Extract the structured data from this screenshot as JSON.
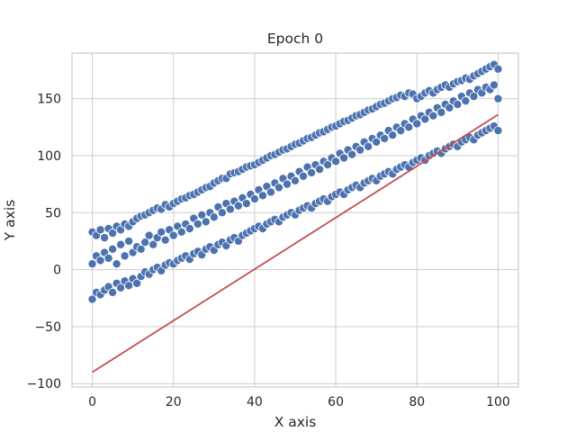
{
  "chart_data": {
    "type": "scatter",
    "title": "Epoch 0",
    "xlabel": "X axis",
    "ylabel": "Y axis",
    "xlim": [
      -5,
      105
    ],
    "ylim": [
      -103,
      190
    ],
    "xticks": [
      0,
      20,
      40,
      60,
      80,
      100
    ],
    "xtick_labels": [
      "0",
      "20",
      "40",
      "60",
      "80",
      "100"
    ],
    "yticks": [
      -100,
      -50,
      0,
      50,
      100,
      150
    ],
    "ytick_labels": [
      "−100",
      "−50",
      "0",
      "50",
      "100",
      "150"
    ],
    "grid": true,
    "legend": "none",
    "series": [
      {
        "kind": "scatter",
        "color": "#4c72b0",
        "edge_color": "#ffffff",
        "points": [
          [
            0,
            -26
          ],
          [
            0,
            5
          ],
          [
            0,
            33
          ],
          [
            1,
            -20
          ],
          [
            1,
            12
          ],
          [
            1,
            30
          ],
          [
            2,
            -22
          ],
          [
            2,
            8
          ],
          [
            2,
            35
          ],
          [
            3,
            -18
          ],
          [
            3,
            15
          ],
          [
            3,
            28
          ],
          [
            4,
            -15
          ],
          [
            4,
            10
          ],
          [
            4,
            36
          ],
          [
            5,
            -20
          ],
          [
            5,
            18
          ],
          [
            5,
            32
          ],
          [
            6,
            -12
          ],
          [
            6,
            5
          ],
          [
            6,
            38
          ],
          [
            7,
            -16
          ],
          [
            7,
            22
          ],
          [
            7,
            35
          ],
          [
            8,
            -10
          ],
          [
            8,
            12
          ],
          [
            8,
            40
          ],
          [
            9,
            -14
          ],
          [
            9,
            25
          ],
          [
            9,
            38
          ],
          [
            10,
            -8
          ],
          [
            10,
            15
          ],
          [
            10,
            42
          ],
          [
            11,
            -12
          ],
          [
            11,
            20
          ],
          [
            11,
            45
          ],
          [
            12,
            -6
          ],
          [
            12,
            18
          ],
          [
            12,
            47
          ],
          [
            13,
            -2
          ],
          [
            13,
            24
          ],
          [
            13,
            48
          ],
          [
            14,
            -4
          ],
          [
            14,
            30
          ],
          [
            14,
            50
          ],
          [
            15,
            0
          ],
          [
            15,
            22
          ],
          [
            15,
            52
          ],
          [
            16,
            2
          ],
          [
            16,
            28
          ],
          [
            16,
            54
          ],
          [
            17,
            -1
          ],
          [
            17,
            33
          ],
          [
            17,
            53
          ],
          [
            18,
            4
          ],
          [
            18,
            26
          ],
          [
            18,
            57
          ],
          [
            19,
            6
          ],
          [
            19,
            35
          ],
          [
            19,
            55
          ],
          [
            20,
            5
          ],
          [
            20,
            30
          ],
          [
            20,
            58
          ],
          [
            21,
            8
          ],
          [
            21,
            38
          ],
          [
            21,
            60
          ],
          [
            22,
            10
          ],
          [
            22,
            33
          ],
          [
            22,
            62
          ],
          [
            23,
            12
          ],
          [
            23,
            40
          ],
          [
            23,
            63
          ],
          [
            24,
            9
          ],
          [
            24,
            36
          ],
          [
            24,
            65
          ],
          [
            25,
            14
          ],
          [
            25,
            45
          ],
          [
            25,
            66
          ],
          [
            26,
            16
          ],
          [
            26,
            40
          ],
          [
            26,
            68
          ],
          [
            27,
            13
          ],
          [
            27,
            48
          ],
          [
            27,
            70
          ],
          [
            28,
            18
          ],
          [
            28,
            42
          ],
          [
            28,
            72
          ],
          [
            29,
            20
          ],
          [
            29,
            50
          ],
          [
            29,
            73
          ],
          [
            30,
            17
          ],
          [
            30,
            46
          ],
          [
            30,
            76
          ],
          [
            31,
            22
          ],
          [
            31,
            55
          ],
          [
            31,
            78
          ],
          [
            32,
            24
          ],
          [
            32,
            50
          ],
          [
            32,
            80
          ],
          [
            33,
            21
          ],
          [
            33,
            58
          ],
          [
            33,
            80
          ],
          [
            34,
            26
          ],
          [
            34,
            53
          ],
          [
            34,
            84
          ],
          [
            35,
            28
          ],
          [
            35,
            60
          ],
          [
            35,
            85
          ],
          [
            36,
            25
          ],
          [
            36,
            56
          ],
          [
            36,
            86
          ],
          [
            37,
            30
          ],
          [
            37,
            63
          ],
          [
            37,
            88
          ],
          [
            38,
            32
          ],
          [
            38,
            58
          ],
          [
            38,
            90
          ],
          [
            39,
            34
          ],
          [
            39,
            66
          ],
          [
            39,
            91
          ],
          [
            40,
            36
          ],
          [
            40,
            62
          ],
          [
            40,
            92
          ],
          [
            41,
            38
          ],
          [
            41,
            70
          ],
          [
            41,
            94
          ],
          [
            42,
            36
          ],
          [
            42,
            65
          ],
          [
            42,
            96
          ],
          [
            43,
            40
          ],
          [
            43,
            73
          ],
          [
            43,
            98
          ],
          [
            44,
            42
          ],
          [
            44,
            68
          ],
          [
            44,
            100
          ],
          [
            45,
            44
          ],
          [
            45,
            76
          ],
          [
            45,
            101
          ],
          [
            46,
            42
          ],
          [
            46,
            72
          ],
          [
            46,
            103
          ],
          [
            47,
            46
          ],
          [
            47,
            80
          ],
          [
            47,
            105
          ],
          [
            48,
            48
          ],
          [
            48,
            75
          ],
          [
            48,
            106
          ],
          [
            49,
            50
          ],
          [
            49,
            82
          ],
          [
            49,
            108
          ],
          [
            50,
            48
          ],
          [
            50,
            78
          ],
          [
            50,
            110
          ],
          [
            51,
            52
          ],
          [
            51,
            86
          ],
          [
            51,
            111
          ],
          [
            52,
            54
          ],
          [
            52,
            82
          ],
          [
            52,
            113
          ],
          [
            53,
            56
          ],
          [
            53,
            90
          ],
          [
            53,
            115
          ],
          [
            54,
            54
          ],
          [
            54,
            85
          ],
          [
            54,
            116
          ],
          [
            55,
            58
          ],
          [
            55,
            92
          ],
          [
            55,
            118
          ],
          [
            56,
            60
          ],
          [
            56,
            88
          ],
          [
            56,
            120
          ],
          [
            57,
            62
          ],
          [
            57,
            95
          ],
          [
            57,
            121
          ],
          [
            58,
            60
          ],
          [
            58,
            92
          ],
          [
            58,
            123
          ],
          [
            59,
            64
          ],
          [
            59,
            98
          ],
          [
            59,
            125
          ],
          [
            60,
            66
          ],
          [
            60,
            95
          ],
          [
            60,
            126
          ],
          [
            61,
            68
          ],
          [
            61,
            102
          ],
          [
            61,
            128
          ],
          [
            62,
            66
          ],
          [
            62,
            98
          ],
          [
            62,
            130
          ],
          [
            63,
            70
          ],
          [
            63,
            105
          ],
          [
            63,
            131
          ],
          [
            64,
            72
          ],
          [
            64,
            101
          ],
          [
            64,
            133
          ],
          [
            65,
            74
          ],
          [
            65,
            108
          ],
          [
            65,
            135
          ],
          [
            66,
            72
          ],
          [
            66,
            105
          ],
          [
            66,
            136
          ],
          [
            67,
            76
          ],
          [
            67,
            112
          ],
          [
            67,
            138
          ],
          [
            68,
            78
          ],
          [
            68,
            108
          ],
          [
            68,
            140
          ],
          [
            69,
            80
          ],
          [
            69,
            115
          ],
          [
            69,
            141
          ],
          [
            70,
            78
          ],
          [
            70,
            112
          ],
          [
            70,
            143
          ],
          [
            71,
            82
          ],
          [
            71,
            118
          ],
          [
            71,
            145
          ],
          [
            72,
            84
          ],
          [
            72,
            115
          ],
          [
            72,
            146
          ],
          [
            73,
            86
          ],
          [
            73,
            122
          ],
          [
            73,
            148
          ],
          [
            74,
            84
          ],
          [
            74,
            118
          ],
          [
            74,
            150
          ],
          [
            75,
            88
          ],
          [
            75,
            125
          ],
          [
            75,
            151
          ],
          [
            76,
            90
          ],
          [
            76,
            122
          ],
          [
            76,
            153
          ],
          [
            77,
            92
          ],
          [
            77,
            128
          ],
          [
            77,
            152
          ],
          [
            78,
            90
          ],
          [
            78,
            125
          ],
          [
            78,
            155
          ],
          [
            79,
            94
          ],
          [
            79,
            132
          ],
          [
            79,
            154
          ],
          [
            80,
            96
          ],
          [
            80,
            128
          ],
          [
            80,
            150
          ],
          [
            81,
            98
          ],
          [
            81,
            135
          ],
          [
            81,
            152
          ],
          [
            82,
            96
          ],
          [
            82,
            132
          ],
          [
            82,
            155
          ],
          [
            83,
            100
          ],
          [
            83,
            138
          ],
          [
            83,
            157
          ],
          [
            84,
            102
          ],
          [
            84,
            135
          ],
          [
            84,
            155
          ],
          [
            85,
            104
          ],
          [
            85,
            142
          ],
          [
            85,
            158
          ],
          [
            86,
            102
          ],
          [
            86,
            138
          ],
          [
            86,
            160
          ],
          [
            87,
            106
          ],
          [
            87,
            145
          ],
          [
            87,
            162
          ],
          [
            88,
            108
          ],
          [
            88,
            142
          ],
          [
            88,
            160
          ],
          [
            89,
            110
          ],
          [
            89,
            148
          ],
          [
            89,
            163
          ],
          [
            90,
            108
          ],
          [
            90,
            145
          ],
          [
            90,
            165
          ],
          [
            91,
            112
          ],
          [
            91,
            152
          ],
          [
            91,
            166
          ],
          [
            92,
            114
          ],
          [
            92,
            148
          ],
          [
            92,
            168
          ],
          [
            93,
            116
          ],
          [
            93,
            155
          ],
          [
            93,
            167
          ],
          [
            94,
            114
          ],
          [
            94,
            152
          ],
          [
            94,
            170
          ],
          [
            95,
            118
          ],
          [
            95,
            158
          ],
          [
            95,
            172
          ],
          [
            96,
            120
          ],
          [
            96,
            155
          ],
          [
            96,
            174
          ],
          [
            97,
            122
          ],
          [
            97,
            160
          ],
          [
            97,
            176
          ],
          [
            98,
            124
          ],
          [
            98,
            158
          ],
          [
            98,
            178
          ],
          [
            99,
            126
          ],
          [
            99,
            162
          ],
          [
            99,
            180
          ],
          [
            100,
            122
          ],
          [
            100,
            150
          ],
          [
            100,
            176
          ]
        ]
      },
      {
        "kind": "line",
        "color": "#c44e52",
        "x": [
          0,
          100
        ],
        "y": [
          -90,
          136
        ]
      }
    ]
  }
}
